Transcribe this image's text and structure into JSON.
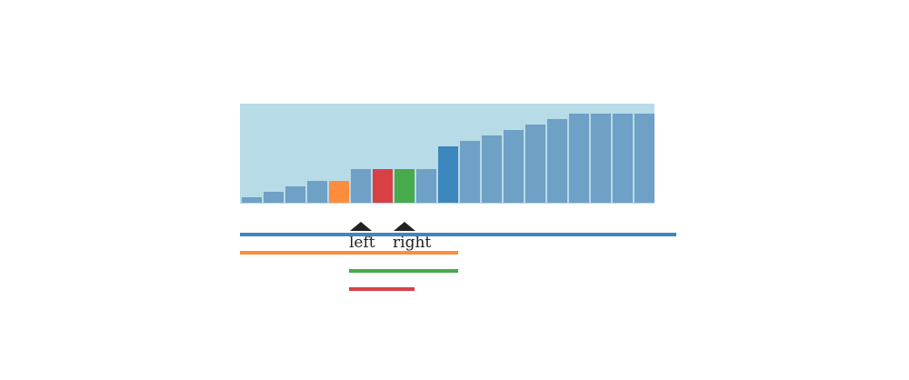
{
  "colors": {
    "background": "#ffffff",
    "panel": "#b7dbe7",
    "bar_default": "#6fa0c5",
    "bar_orange": "#fd8d3c",
    "bar_red": "#d94046",
    "bar_green": "#47aa4b",
    "bar_blue": "#3c87bd",
    "pointer": "#222222"
  },
  "bars": {
    "values": [
      6,
      12,
      18,
      24,
      24,
      37,
      37,
      37,
      37,
      61,
      67,
      73,
      79,
      85,
      91,
      97,
      97,
      97,
      97
    ],
    "max_value": 97,
    "highlights": {
      "4": "orange",
      "6": "red",
      "7": "green",
      "9": "blue"
    }
  },
  "pointers": {
    "left": {
      "label": "left",
      "index": 5
    },
    "right": {
      "label": "right",
      "index": 7
    }
  },
  "ranges": [
    {
      "name": "blue-range",
      "color": "blue",
      "start": 0,
      "end": 20
    },
    {
      "name": "orange-range",
      "color": "orange",
      "start": 0,
      "end": 10
    },
    {
      "name": "green-range",
      "color": "green",
      "start": 5,
      "end": 10
    },
    {
      "name": "red-range",
      "color": "red",
      "start": 5,
      "end": 8
    }
  ]
}
